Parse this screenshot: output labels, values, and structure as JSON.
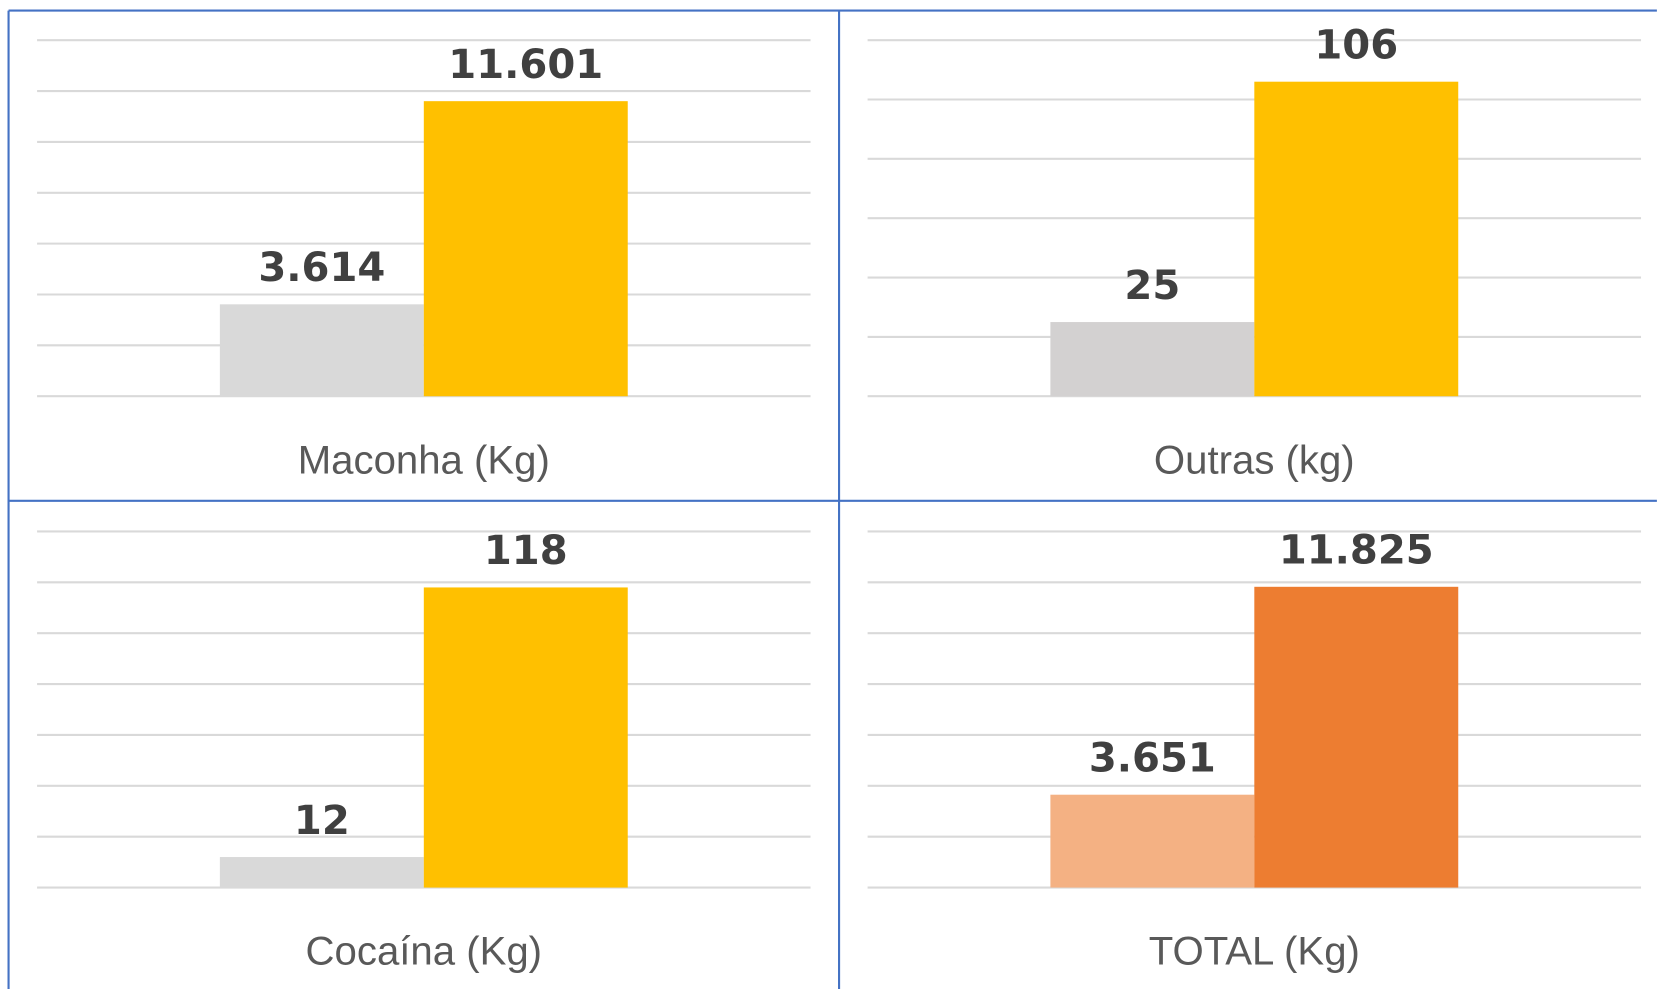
{
  "chart_data": [
    {
      "type": "bar",
      "xlabel": "Maconha (Kg)",
      "values": [
        3614,
        11601
      ],
      "value_labels": [
        "3.614",
        "11.601"
      ],
      "colors": [
        "#d9d9d9",
        "#ffc000"
      ],
      "ylim": [
        0,
        14000
      ],
      "yticks": [
        0,
        2000,
        4000,
        6000,
        8000,
        10000,
        12000,
        14000
      ],
      "grid": true
    },
    {
      "type": "bar",
      "xlabel": "Outras (kg)",
      "values": [
        25,
        106
      ],
      "value_labels": [
        "25",
        "106"
      ],
      "colors": [
        "#d3d1d1",
        "#ffc000"
      ],
      "ylim": [
        0,
        120
      ],
      "yticks": [
        0,
        20,
        40,
        60,
        80,
        100,
        120
      ],
      "grid": true
    },
    {
      "type": "bar",
      "xlabel": "Cocaína (Kg)",
      "values": [
        12,
        118
      ],
      "value_labels": [
        "12",
        "118"
      ],
      "colors": [
        "#d9d9d9",
        "#ffc000"
      ],
      "ylim": [
        0,
        140
      ],
      "yticks": [
        0,
        20,
        40,
        60,
        80,
        100,
        120,
        140
      ],
      "grid": true
    },
    {
      "type": "bar",
      "xlabel": "TOTAL (Kg)",
      "values": [
        3651,
        11825
      ],
      "value_labels": [
        "3.651",
        "11.825"
      ],
      "colors": [
        "#f4b183",
        "#ed7d31"
      ],
      "ylim": [
        0,
        14000
      ],
      "yticks": [
        0,
        2000,
        4000,
        6000,
        8000,
        10000,
        12000,
        14000
      ],
      "grid": true
    }
  ]
}
